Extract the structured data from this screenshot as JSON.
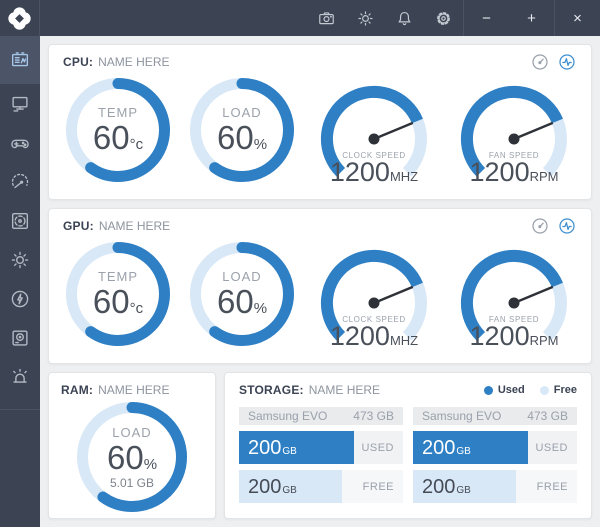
{
  "topbar": {
    "icons": [
      {
        "name": "camera"
      },
      {
        "name": "brightness"
      },
      {
        "name": "notifications"
      },
      {
        "name": "settings"
      }
    ],
    "window_controls": {
      "minimize": "−",
      "maximize": "+",
      "close": "×"
    }
  },
  "sidebar": {
    "items": [
      {
        "name": "dashboard",
        "active": true
      },
      {
        "name": "pc",
        "active": false
      },
      {
        "name": "games",
        "active": false
      },
      {
        "name": "benchmark",
        "active": false
      },
      {
        "name": "cooling",
        "active": false
      },
      {
        "name": "brightness",
        "active": false
      },
      {
        "name": "power",
        "active": false
      },
      {
        "name": "storage",
        "active": false
      },
      {
        "name": "alerts",
        "active": false
      }
    ]
  },
  "cards": {
    "cpu": {
      "title": "CPU:",
      "subtitle": "NAME HERE",
      "gauges": [
        {
          "type": "donut",
          "label": "TEMP",
          "value": "60",
          "unit": "°c",
          "percent": 60
        },
        {
          "type": "donut",
          "label": "LOAD",
          "value": "60",
          "unit": "%",
          "percent": 60
        },
        {
          "type": "needle",
          "label": "CLOCK SPEED",
          "value": "1200",
          "unit": "MHZ",
          "percent": 75
        },
        {
          "type": "needle",
          "label": "FAN SPEED",
          "value": "1200",
          "unit": "RPM",
          "percent": 75
        }
      ]
    },
    "gpu": {
      "title": "GPU:",
      "subtitle": "NAME HERE",
      "gauges": [
        {
          "type": "donut",
          "label": "TEMP",
          "value": "60",
          "unit": "°c",
          "percent": 60
        },
        {
          "type": "donut",
          "label": "LOAD",
          "value": "60",
          "unit": "%",
          "percent": 60
        },
        {
          "type": "needle",
          "label": "CLOCK SPEED",
          "value": "1200",
          "unit": "MHZ",
          "percent": 75
        },
        {
          "type": "needle",
          "label": "FAN SPEED",
          "value": "1200",
          "unit": "RPM",
          "percent": 75
        }
      ]
    },
    "ram": {
      "title": "RAM:",
      "subtitle": "NAME HERE",
      "gauge": {
        "type": "donut",
        "label": "LOAD",
        "value": "60",
        "unit": "%",
        "sub": "5.01 GB",
        "percent": 60
      }
    },
    "storage": {
      "title": "STORAGE:",
      "subtitle": "NAME HERE",
      "legend": [
        {
          "label": "Used",
          "color": "#2e7fc4"
        },
        {
          "label": "Free",
          "color": "#d8e8f7"
        }
      ],
      "drives": [
        {
          "name": "Samsung EVO",
          "capacity": "473 GB",
          "used": {
            "value": "200",
            "unit": "GB",
            "label": "USED",
            "percent": 70
          },
          "free": {
            "value": "200",
            "unit": "GB",
            "label": "FREE",
            "percent": 63
          }
        },
        {
          "name": "Samsung EVO",
          "capacity": "473 GB",
          "used": {
            "value": "200",
            "unit": "GB",
            "label": "USED",
            "percent": 70
          },
          "free": {
            "value": "200",
            "unit": "GB",
            "label": "FREE",
            "percent": 63
          }
        }
      ]
    }
  },
  "colors": {
    "accent": "#2e7fc4",
    "accent_light": "#d8e8f7",
    "topbar_bg": "#3c4454",
    "sidebar_active_bg": "#4c5468",
    "icon_gray": "#b4bac4",
    "icon_active": "#a5c8ea",
    "content_bg": "#edeff0",
    "text_dark": "#3b4354",
    "text_value": "#4a505a",
    "text_gray": "#9aa1ab",
    "needle": "#2e3238"
  }
}
